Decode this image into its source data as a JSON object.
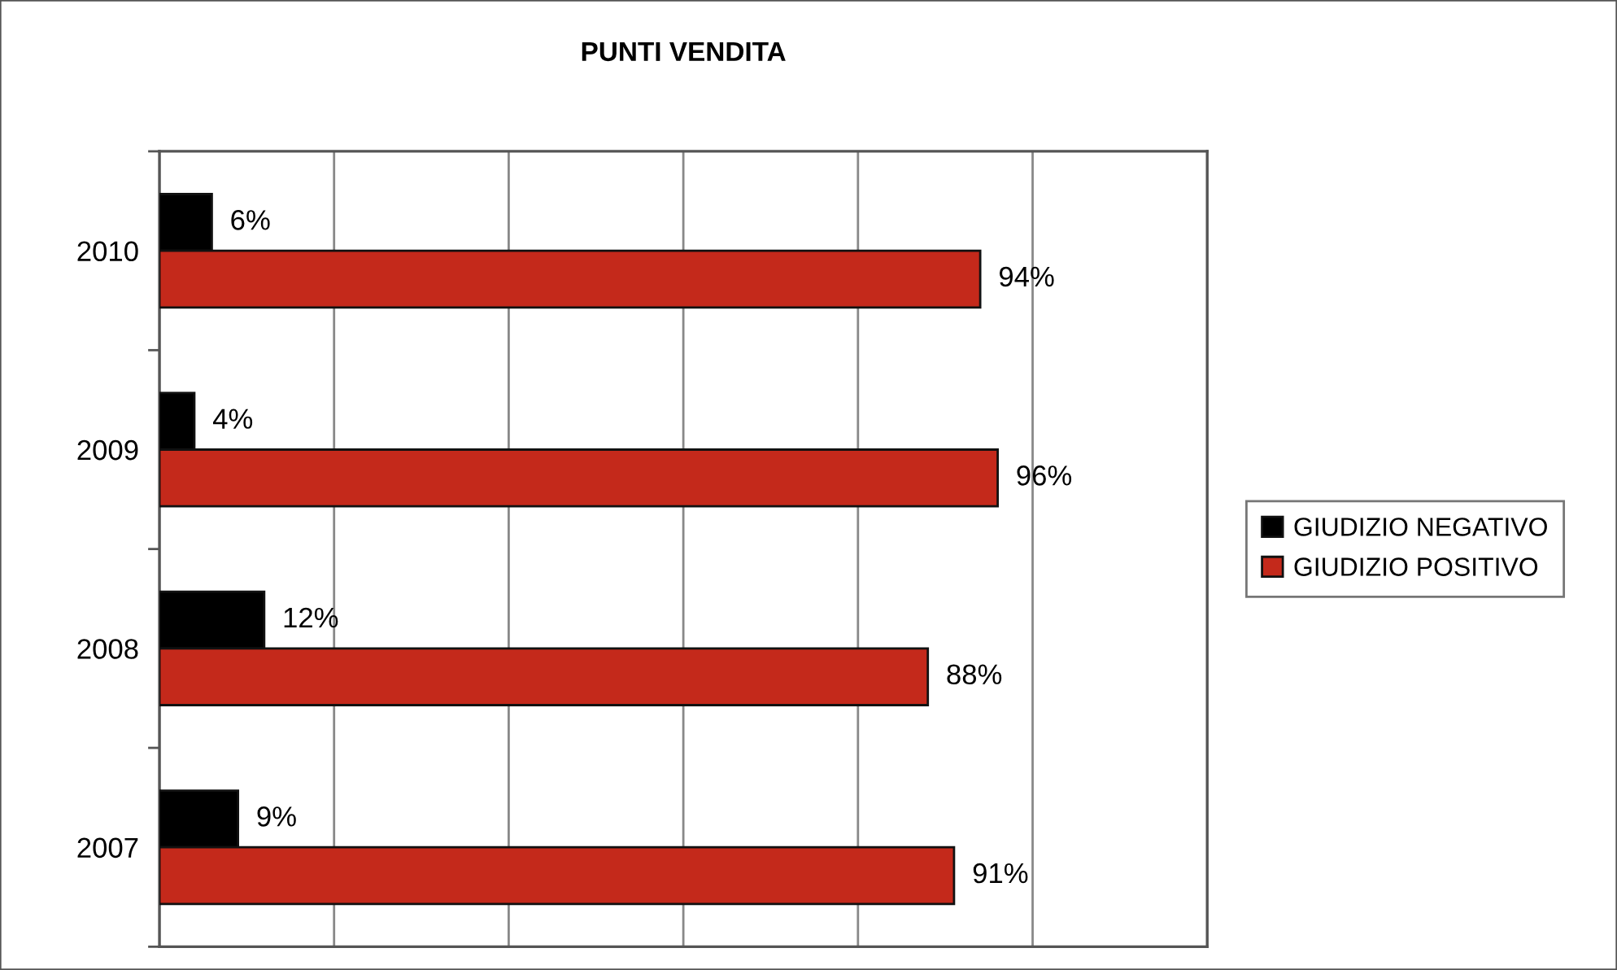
{
  "chart_data": {
    "type": "bar",
    "orientation": "horizontal",
    "title": "PUNTI VENDITA",
    "categories": [
      "2010",
      "2009",
      "2008",
      "2007"
    ],
    "series": [
      {
        "name": "GIUDIZIO NEGATIVO",
        "color": "#000000",
        "values": [
          6,
          4,
          12,
          9
        ],
        "value_labels": [
          "6%",
          "4%",
          "12%",
          "9%"
        ]
      },
      {
        "name": "GIUDIZIO POSITIVO",
        "color": "#c4291b",
        "values": [
          94,
          96,
          88,
          91
        ],
        "value_labels": [
          "94%",
          "96%",
          "88%",
          "91%"
        ]
      }
    ],
    "xlim": [
      0,
      120
    ],
    "xticks": [
      {
        "value": 0,
        "label": null
      },
      {
        "value": 20,
        "label": null
      },
      {
        "value": 40,
        "label": null
      },
      {
        "value": 60,
        "label": null
      },
      {
        "value": 80,
        "label": null
      },
      {
        "value": 100,
        "label": null
      },
      {
        "value": 120,
        "label": null
      }
    ],
    "grid": "x",
    "legend": "right",
    "tick_labels": "y"
  }
}
